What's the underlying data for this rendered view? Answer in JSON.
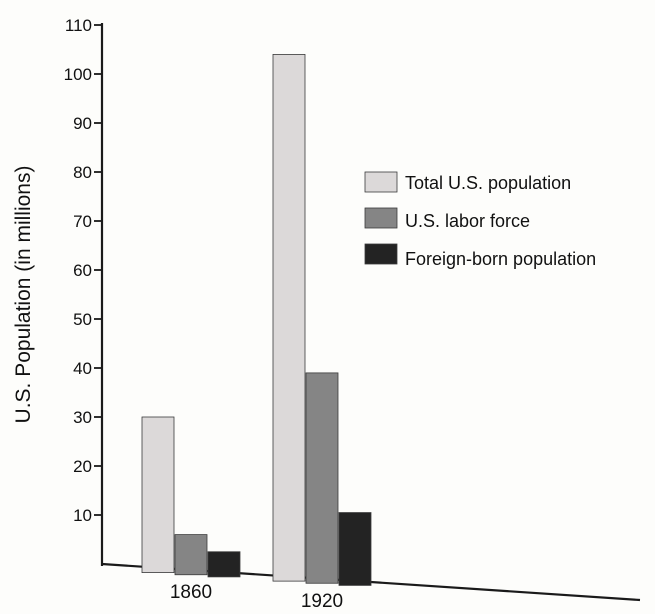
{
  "chart_data": {
    "type": "bar",
    "title": "",
    "xlabel": "",
    "ylabel": "U.S. Population (in millions)",
    "ylim": [
      0,
      110
    ],
    "yticks": [
      10,
      20,
      30,
      40,
      50,
      60,
      70,
      80,
      90,
      100,
      110
    ],
    "categories": [
      "1860",
      "1920"
    ],
    "series": [
      {
        "name": "Total U.S. population",
        "values": [
          30,
          104
        ],
        "color": "#dcd9d9"
      },
      {
        "name": "U.S. labor force",
        "values": [
          6,
          39
        ],
        "color": "#858585"
      },
      {
        "name": "Foreign-born population",
        "values": [
          2.5,
          10.5
        ],
        "color": "#232323"
      }
    ],
    "legend_position": "upper-right",
    "grid": false
  }
}
